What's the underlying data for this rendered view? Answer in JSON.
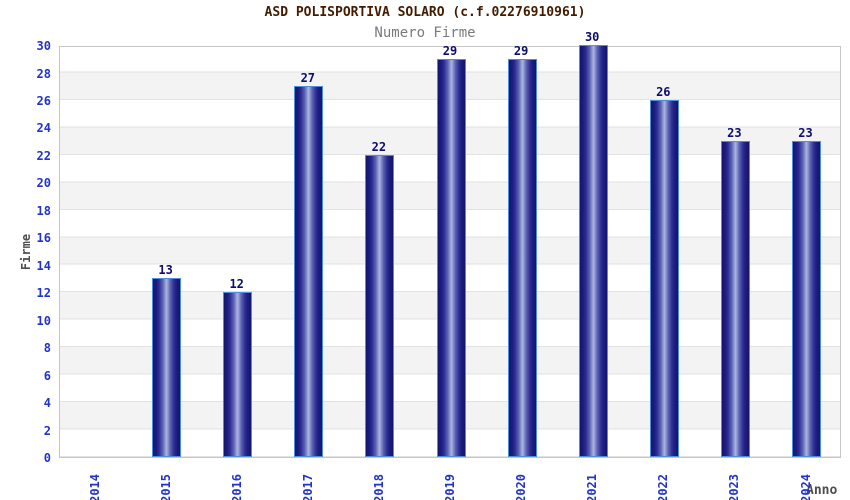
{
  "chart_data": {
    "type": "bar",
    "title": "ASD POLISPORTIVA SOLARO (c.f.02276910961)",
    "subtitle": "Numero Firme",
    "xlabel": "Anno",
    "ylabel": "Firme",
    "categories": [
      "2014",
      "2015",
      "2016",
      "2017",
      "2018",
      "2019",
      "2020",
      "2021",
      "2022",
      "2023",
      "2024"
    ],
    "values": [
      0,
      13,
      12,
      27,
      22,
      29,
      29,
      30,
      26,
      23,
      23
    ],
    "ylim": [
      0,
      30
    ],
    "ytick_step": 2,
    "grid": true,
    "legend": "none",
    "colors": {
      "bar_dark": "#13136f",
      "bar_light": "#aeb5df",
      "bar_border": "#4d8fdd",
      "tick_label": "#2233cc",
      "value_label": "#0d0d6e",
      "title": "#431c00",
      "subtitle": "#7a7a7a",
      "axis_label": "#4d4d4d",
      "band_alt": "#f3f3f3",
      "gridline": "#e2e2e2",
      "plot_border": "#c6c6c6",
      "background": "#ffffff"
    }
  }
}
